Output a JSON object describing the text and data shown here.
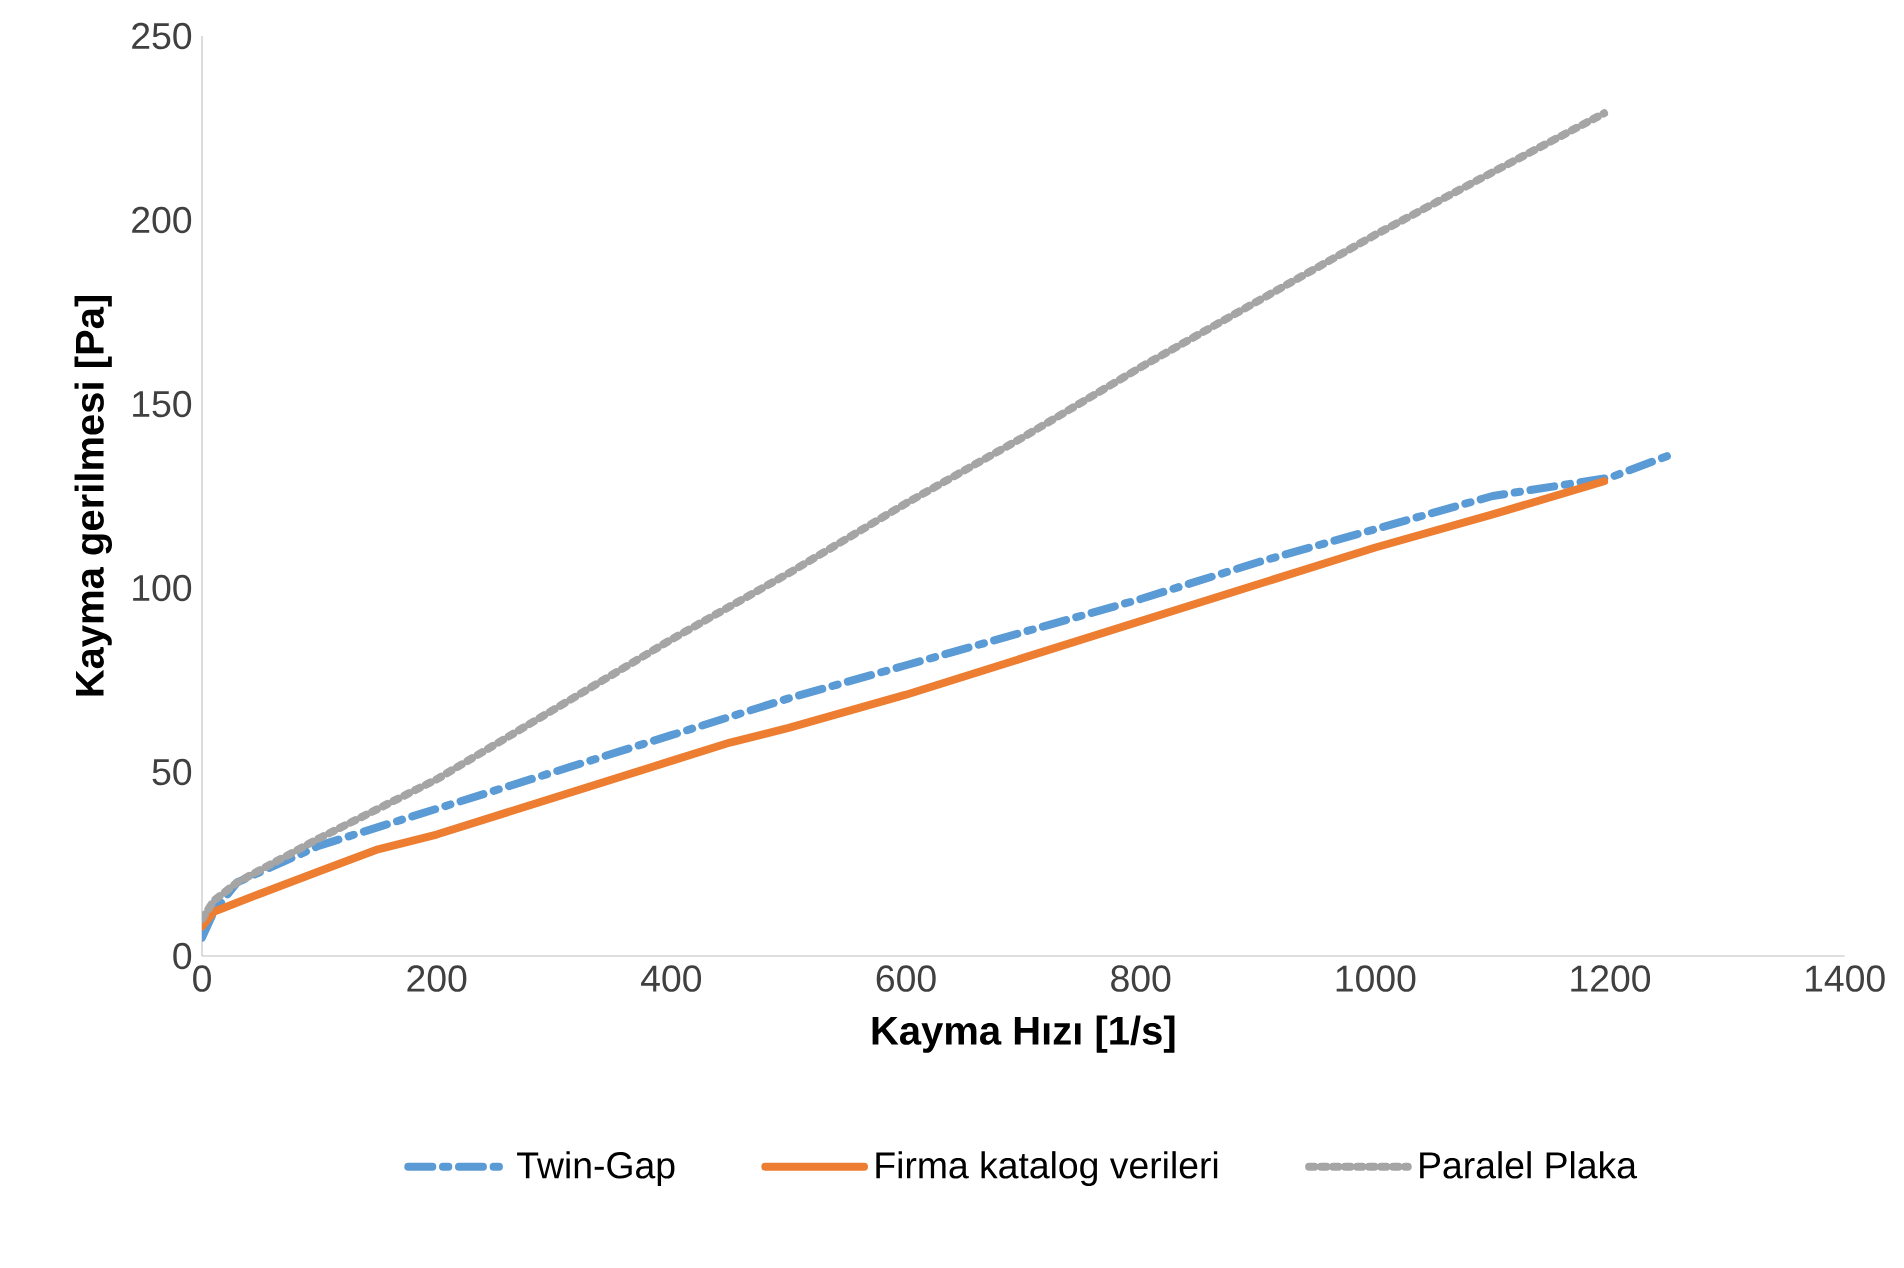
{
  "chart_data": {
    "type": "line",
    "xlabel": "Kayma Hızı [1/s]",
    "ylabel": "Kayma gerilmesi [Pa]",
    "xlim": [
      0,
      1400
    ],
    "ylim": [
      0,
      250
    ],
    "xticks": [
      0,
      200,
      400,
      600,
      800,
      1000,
      1200,
      1400
    ],
    "yticks": [
      0,
      50,
      100,
      150,
      200,
      250
    ],
    "grid": false,
    "legend": "bottom",
    "marker": "none",
    "series": [
      {
        "name": "Twin-Gap",
        "color": "#5b9bd5",
        "line_style": "dashdot",
        "x": [
          0,
          10,
          30,
          100,
          200,
          300,
          400,
          500,
          600,
          700,
          800,
          900,
          1000,
          1100,
          1200,
          1250
        ],
        "values": [
          5,
          12,
          20,
          30,
          40,
          50,
          60,
          70,
          79,
          88,
          97,
          107,
          116,
          125,
          130,
          136
        ]
      },
      {
        "name": "Firma katalog verileri",
        "color": "#ed7d31",
        "line_style": "solid",
        "x": [
          0,
          10,
          50,
          100,
          150,
          200,
          300,
          400,
          450,
          500,
          600,
          700,
          800,
          900,
          1000,
          1100,
          1195
        ],
        "values": [
          8,
          12,
          17,
          23,
          29,
          33,
          43,
          53,
          58,
          62,
          71,
          81,
          91,
          101,
          111,
          120,
          129
        ]
      },
      {
        "name": "Paralel Plaka",
        "color": "#a5a5a5",
        "line_style": "dotted",
        "x": [
          0,
          10,
          30,
          100,
          200,
          300,
          400,
          500,
          600,
          700,
          800,
          900,
          1000,
          1100,
          1195
        ],
        "values": [
          10,
          15,
          20,
          32,
          48,
          67,
          86,
          104,
          123,
          141,
          160,
          178,
          196,
          213,
          229
        ]
      }
    ]
  }
}
